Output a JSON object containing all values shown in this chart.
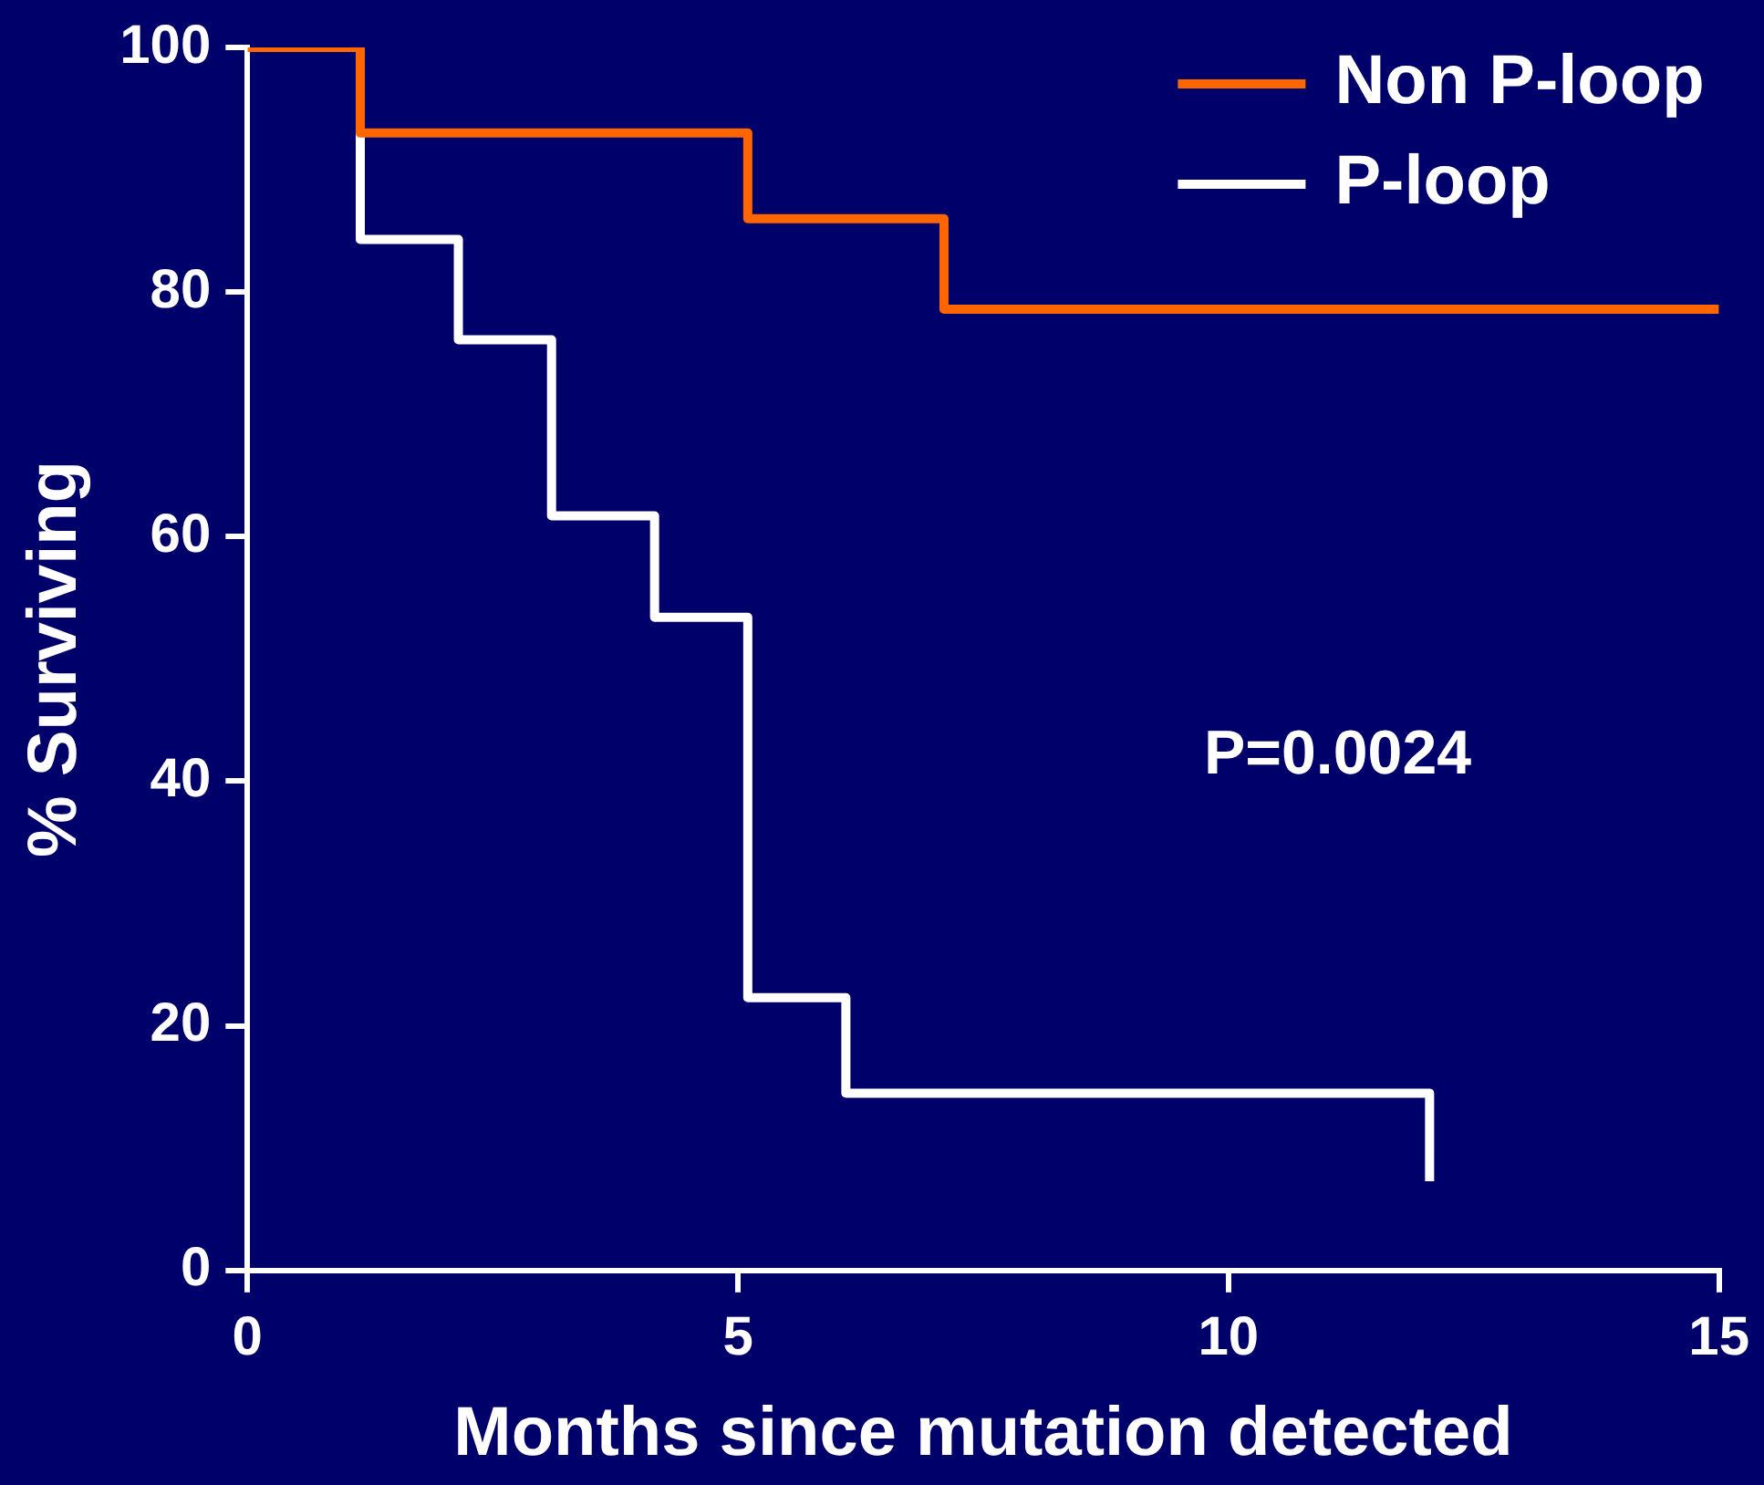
{
  "chart_data": {
    "type": "step",
    "xlabel": "Months since mutation detected",
    "ylabel": "% Surviving",
    "xlim": [
      0,
      15
    ],
    "xticks": [
      0,
      5,
      10,
      15
    ],
    "ylim": [
      0,
      100
    ],
    "yticks": [
      0,
      20,
      40,
      60,
      80,
      100
    ],
    "grid": false,
    "legend": "top right",
    "marker": "none",
    "line_style": "solid",
    "series": [
      {
        "name": "Non P-loop",
        "color": "#ff6600",
        "x": [
          0,
          1.15,
          5.1,
          7.1,
          15
        ],
        "values": [
          100,
          93,
          86,
          78.6,
          78.6
        ]
      },
      {
        "name": "P-loop",
        "color": "#ffffff",
        "x": [
          0,
          1.15,
          2.15,
          3.1,
          4.15,
          5.1,
          6.1,
          12.05
        ],
        "values": [
          100,
          84.3,
          76.1,
          61.7,
          53.4,
          22.3,
          14.5,
          7.3
        ]
      }
    ],
    "annotations": [
      "P=0.0024"
    ]
  }
}
